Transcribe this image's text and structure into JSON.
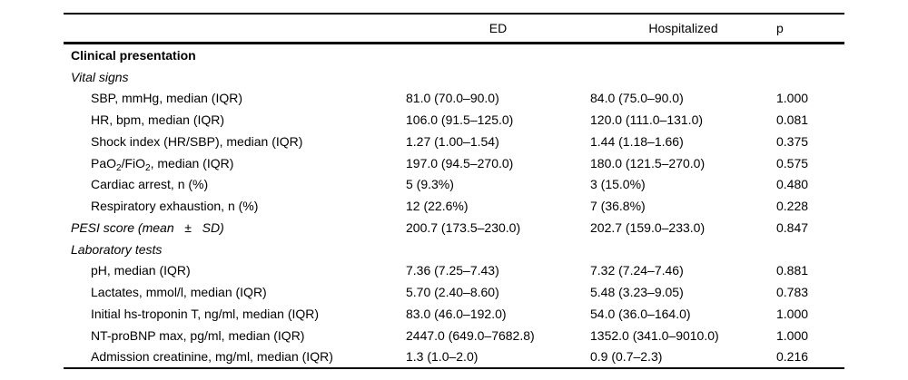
{
  "colors": {
    "text": "#000000",
    "background": "#ffffff"
  },
  "table": {
    "columns": [
      "",
      "ED",
      "Hospitalized",
      "p"
    ],
    "rows": [
      {
        "label": "Clinical presentation",
        "bold": true,
        "ed": "",
        "hospitalized": "",
        "p": ""
      },
      {
        "label": "Vital signs",
        "italic": true,
        "ed": "",
        "hospitalized": "",
        "p": ""
      },
      {
        "label": "SBP, mmHg, median (IQR)",
        "indent": true,
        "ed": "81.0 (70.0–90.0)",
        "hospitalized": "84.0 (75.0–90.0)",
        "p": "1.000"
      },
      {
        "label": "HR, bpm, median (IQR)",
        "indent": true,
        "ed": "106.0 (91.5–125.0)",
        "hospitalized": "120.0 (111.0–131.0)",
        "p": "0.081"
      },
      {
        "label": "Shock index (HR/SBP), median (IQR)",
        "indent": true,
        "ed": "1.27 (1.00–1.54)",
        "hospitalized": "1.44 (1.18–1.66)",
        "p": "0.375"
      },
      {
        "label_parts": [
          {
            "t": "PaO"
          },
          {
            "t": "2",
            "sub": true
          },
          {
            "t": "/FiO"
          },
          {
            "t": "2",
            "sub": true
          },
          {
            "t": ", median (IQR)"
          }
        ],
        "indent": true,
        "ed": "197.0 (94.5–270.0)",
        "hospitalized": "180.0 (121.5–270.0)",
        "p": "0.575"
      },
      {
        "label": "Cardiac arrest, n (%)",
        "indent": true,
        "ed": "5 (9.3%)",
        "hospitalized": "3 (15.0%)",
        "p": "0.480"
      },
      {
        "label": "Respiratory exhaustion, n (%)",
        "indent": true,
        "ed": "12 (22.6%)",
        "hospitalized": "7 (36.8%)",
        "p": "0.228"
      },
      {
        "label": "PESI score (mean   ±   SD)",
        "italic": true,
        "ed": "200.7 (173.5–230.0)",
        "hospitalized": "202.7 (159.0–233.0)",
        "p": "0.847"
      },
      {
        "label": "Laboratory tests",
        "italic": true,
        "ed": "",
        "hospitalized": "",
        "p": ""
      },
      {
        "label": "pH, median (IQR)",
        "indent": true,
        "ed": "7.36 (7.25–7.43)",
        "hospitalized": "7.32 (7.24–7.46)",
        "p": "0.881"
      },
      {
        "label": "Lactates, mmol/l, median (IQR)",
        "indent": true,
        "ed": "5.70 (2.40–8.60)",
        "hospitalized": "5.48 (3.23–9.05)",
        "p": "0.783"
      },
      {
        "label": "Initial hs-troponin T, ng/ml, median (IQR)",
        "indent": true,
        "ed": "83.0 (46.0–192.0)",
        "hospitalized": "54.0 (36.0–164.0)",
        "p": "1.000"
      },
      {
        "label": "NT-proBNP max, pg/ml, median (IQR)",
        "indent": true,
        "ed": "2447.0 (649.0–7682.8)",
        "hospitalized": "1352.0 (341.0–9010.0)",
        "p": "1.000"
      },
      {
        "label": "Admission creatinine, mg/ml, median (IQR)",
        "indent": true,
        "ed": "1.3 (1.0–2.0)",
        "hospitalized": "0.9 (0.7–2.3)",
        "p": "0.216"
      }
    ]
  }
}
